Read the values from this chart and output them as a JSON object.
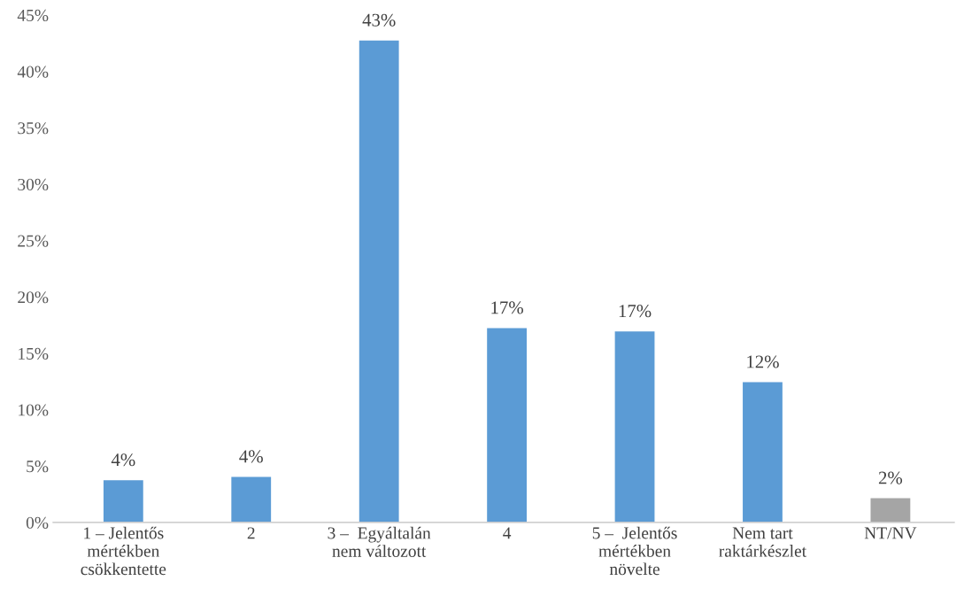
{
  "chart_data": {
    "type": "bar",
    "categories": [
      "1 – Jelentős\nmértékben\ncsökkentette",
      "2",
      "3 –  Egyáltalán\nnem változott",
      "4",
      "5 –  Jelentős\nmértékben\nnövelte",
      "Nem tart\nraktárkészlet",
      "NT/NV"
    ],
    "values": [
      3.8,
      4.1,
      42.8,
      17.3,
      17.0,
      12.5,
      2.2
    ],
    "colors": [
      "#5b9bd5",
      "#5b9bd5",
      "#5b9bd5",
      "#5b9bd5",
      "#5b9bd5",
      "#5b9bd5",
      "#a5a5a5"
    ],
    "value_labels": [
      "4%",
      "4%",
      "43%",
      "17%",
      "17%",
      "12%",
      "2%"
    ],
    "ylim": [
      0,
      45
    ],
    "yticks": [
      {
        "value": 0,
        "label": "0%"
      },
      {
        "value": 5,
        "label": "5%"
      },
      {
        "value": 10,
        "label": "10%"
      },
      {
        "value": 15,
        "label": "15%"
      },
      {
        "value": 20,
        "label": "20%"
      },
      {
        "value": 25,
        "label": "25%"
      },
      {
        "value": 30,
        "label": "30%"
      },
      {
        "value": 35,
        "label": "35%"
      },
      {
        "value": 40,
        "label": "40%"
      },
      {
        "value": 45,
        "label": "45%"
      }
    ],
    "grid": false,
    "legend": false
  }
}
